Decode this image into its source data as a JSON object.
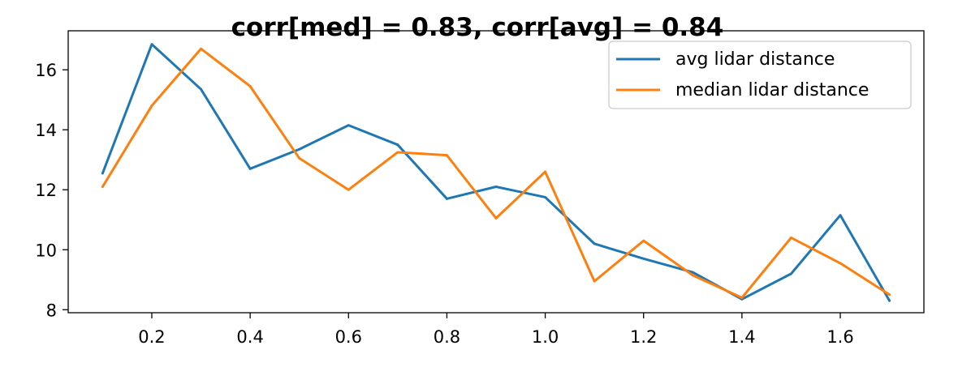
{
  "chart_data": {
    "type": "line",
    "title": "corr[med] = 0.83, corr[avg] = 0.84",
    "xlabel": "",
    "ylabel": "",
    "xlim": [
      0.03,
      1.77
    ],
    "ylim": [
      7.9,
      17.3
    ],
    "xticks": [
      0.2,
      0.4,
      0.6,
      0.8,
      1.0,
      1.2,
      1.4,
      1.6
    ],
    "xtick_labels": [
      "0.2",
      "0.4",
      "0.6",
      "0.8",
      "1.0",
      "1.2",
      "1.4",
      "1.6"
    ],
    "yticks": [
      8,
      10,
      12,
      14,
      16
    ],
    "ytick_labels": [
      "8",
      "10",
      "12",
      "14",
      "16"
    ],
    "grid": false,
    "legend_position": "top-right",
    "x": [
      0.1,
      0.2,
      0.3,
      0.4,
      0.5,
      0.6,
      0.7,
      0.8,
      0.9,
      1.0,
      1.1,
      1.2,
      1.3,
      1.4,
      1.5,
      1.6,
      1.7
    ],
    "series": [
      {
        "name": "avg lidar distance",
        "color": "#1f77b4",
        "values": [
          12.55,
          16.85,
          15.35,
          12.7,
          13.35,
          14.15,
          13.5,
          11.7,
          12.1,
          11.75,
          10.2,
          9.7,
          9.25,
          8.35,
          9.2,
          11.15,
          8.3
        ]
      },
      {
        "name": "median lidar distance",
        "color": "#ff7f0e",
        "values": [
          12.1,
          14.8,
          16.7,
          15.45,
          13.05,
          12.0,
          13.25,
          13.15,
          11.05,
          12.6,
          8.95,
          10.3,
          9.15,
          8.4,
          10.4,
          9.55,
          8.5
        ]
      }
    ]
  }
}
